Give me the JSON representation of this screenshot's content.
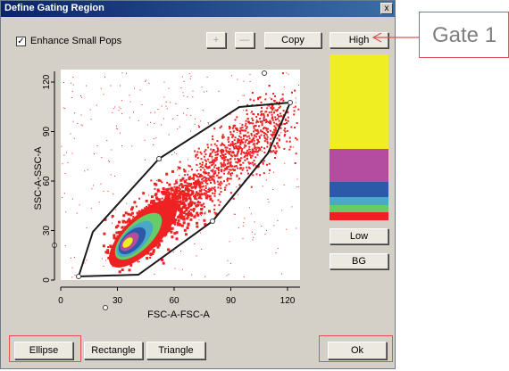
{
  "dialog": {
    "title": "Define Gating Region",
    "close_symbol": "x"
  },
  "toolbar": {
    "enhance_small_pops_label": "Enhance Small Pops",
    "enhance_small_pops_checked": true,
    "zoom_in_label": "+",
    "zoom_out_label": "—",
    "copy_label": "Copy",
    "high_label": "High"
  },
  "plot": {
    "xlabel": "FSC-A-FSC-A",
    "ylabel": "SSC-A-SSC-A",
    "x_ticks": [
      "0",
      "30",
      "60",
      "90",
      "120"
    ],
    "y_ticks": [
      "0",
      "30",
      "60",
      "90",
      "120"
    ]
  },
  "color_scale": {
    "bands": [
      {
        "color": "#eeee22",
        "fraction": 0.57
      },
      {
        "color": "#b44c9f",
        "fraction": 0.2
      },
      {
        "color": "#2c5aa8",
        "fraction": 0.09
      },
      {
        "color": "#4aa8c8",
        "fraction": 0.05
      },
      {
        "color": "#66cc66",
        "fraction": 0.04
      },
      {
        "color": "#ee2222",
        "fraction": 0.05
      }
    ],
    "low_label": "Low",
    "bg_label": "BG"
  },
  "gate_shapes": {
    "ellipse_label": "Ellipse",
    "rectangle_label": "Rectangle",
    "triangle_label": "Triangle"
  },
  "ok_label": "Ok",
  "annotation": {
    "callout_text": "Gate 1",
    "highlight_color": "#e85050"
  }
}
